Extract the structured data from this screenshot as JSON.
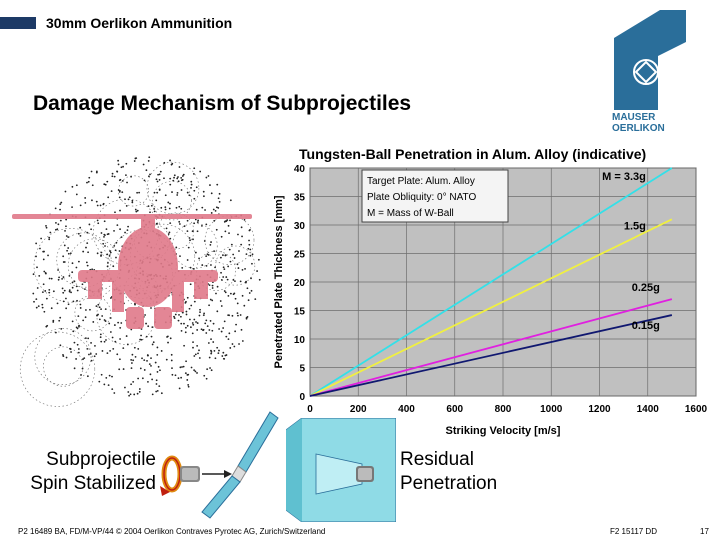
{
  "header": {
    "title": "30mm Oerlikon Ammunition"
  },
  "slide": {
    "title": "Damage Mechanism of Subprojectiles"
  },
  "logo": {
    "line1": "MAUSER",
    "line2": "OERLIKON"
  },
  "labels": {
    "subprojectile_line1": "Subprojectile",
    "subprojectile_line2": "Spin Stabilized",
    "residual_line1": "Residual",
    "residual_line2": "Penetration"
  },
  "footer": {
    "left": "P2 16489 BA, FD/M-VP/44 © 2004 Oerlikon Contraves Pyrotec AG, Zurich/Switzerland",
    "doc_id": "F2 15117 DD",
    "page": "17"
  },
  "chart_data": {
    "type": "line",
    "title": "Tungsten-Ball Penetration in Alum. Alloy (indicative)",
    "xlabel": "Striking Velocity [m/s]",
    "ylabel": "Penetrated Plate Thickness [mm]",
    "xlim": [
      0,
      1600
    ],
    "ylim": [
      0,
      40
    ],
    "xticks": [
      0,
      200,
      400,
      600,
      800,
      1000,
      1200,
      1400,
      1600
    ],
    "yticks": [
      0,
      5,
      10,
      15,
      20,
      25,
      30,
      35,
      40
    ],
    "grid": true,
    "legend_box": [
      "Target Plate: Alum. Alloy",
      "Plate Obliquity: 0° NATO",
      "M = Mass of W-Ball"
    ],
    "series": [
      {
        "name": "M = 3.3g",
        "color": "#33e0e8",
        "x": [
          0,
          1500
        ],
        "y": [
          0,
          40
        ]
      },
      {
        "name": "1.5g",
        "color": "#f0f040",
        "x": [
          0,
          1500
        ],
        "y": [
          0,
          31
        ]
      },
      {
        "name": "0.25g",
        "color": "#e020e0",
        "x": [
          0,
          1500
        ],
        "y": [
          0,
          17
        ]
      },
      {
        "name": "0.15g",
        "color": "#101870",
        "x": [
          0,
          1500
        ],
        "y": [
          0,
          14.2
        ]
      }
    ]
  }
}
